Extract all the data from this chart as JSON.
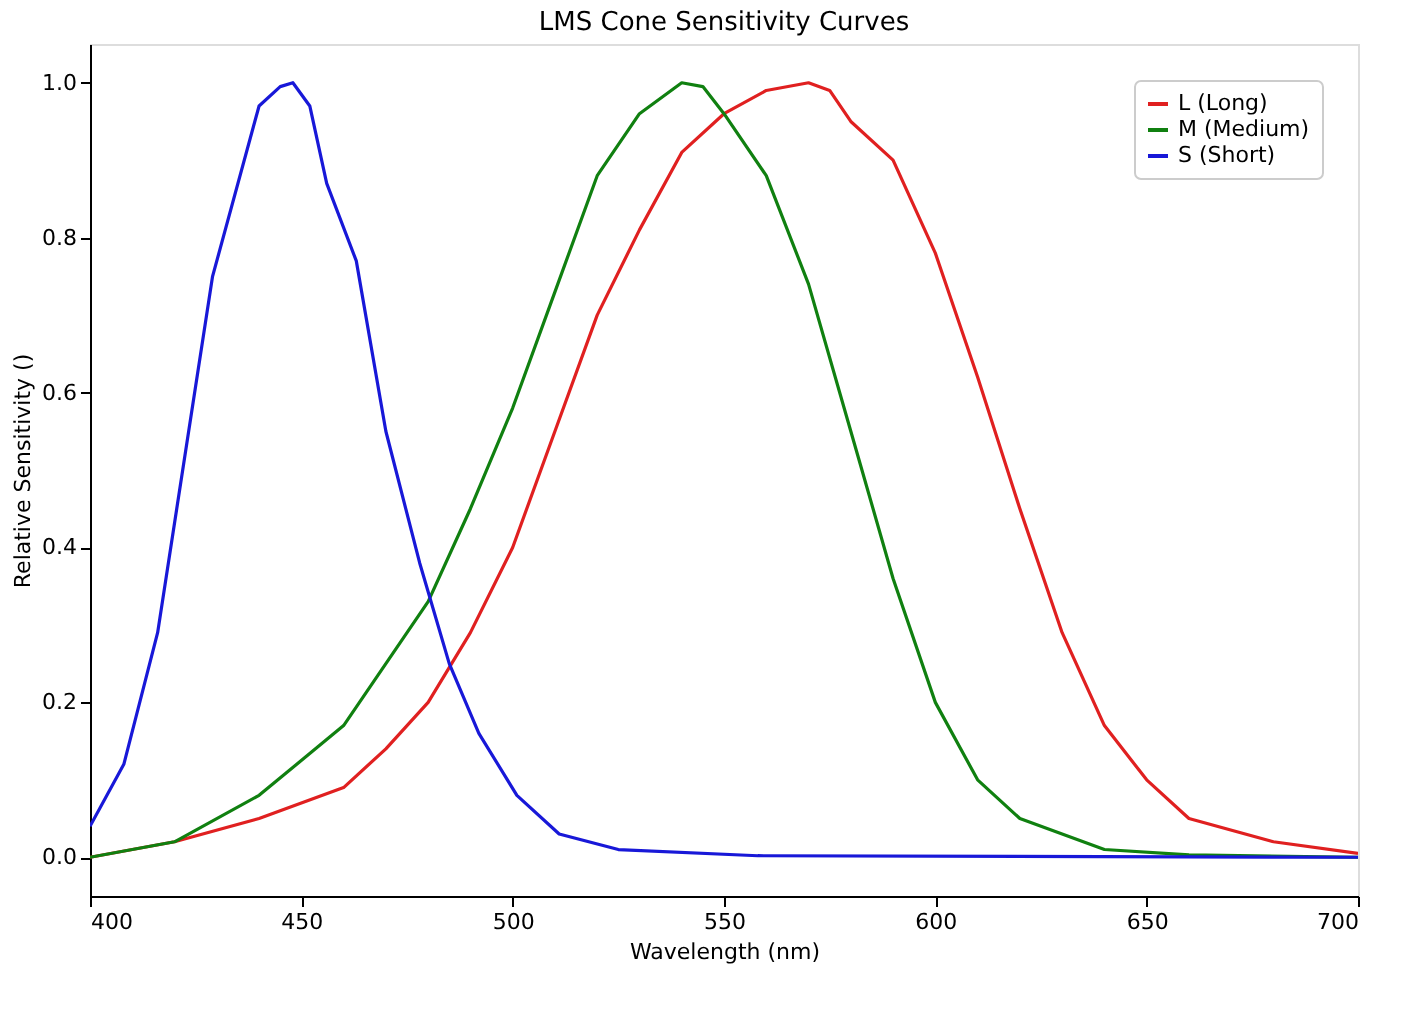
{
  "chart_data": {
    "type": "line",
    "title": "LMS Cone Sensitivity Curves",
    "xlabel": "Wavelength (nm)",
    "ylabel": "Relative Sensitivity ()",
    "xlim": [
      400,
      700
    ],
    "ylim": [
      -0.05,
      1.05
    ],
    "xticks": [
      400,
      450,
      500,
      550,
      600,
      650,
      700
    ],
    "yticks": [
      {
        "value": 0,
        "label": "0.0"
      },
      {
        "value": 0.2,
        "label": "0.2"
      },
      {
        "value": 0.4,
        "label": "0.4"
      },
      {
        "value": 0.6,
        "label": "0.6"
      },
      {
        "value": 0.8,
        "label": "0.8"
      },
      {
        "value": 1,
        "label": "1.0"
      }
    ],
    "grid": false,
    "legend": "top right",
    "marker": "none",
    "line_style": "solid",
    "series": [
      {
        "name": "L (Long)",
        "color": "#e02020",
        "x": [
          400,
          420,
          440,
          460,
          470,
          480,
          490,
          500,
          510,
          520,
          530,
          540,
          550,
          560,
          570,
          575,
          580,
          590,
          600,
          610,
          620,
          630,
          640,
          650,
          660,
          680,
          700
        ],
        "values": [
          0.0,
          0.02,
          0.05,
          0.09,
          0.14,
          0.2,
          0.29,
          0.4,
          0.55,
          0.7,
          0.81,
          0.91,
          0.96,
          0.99,
          1.0,
          0.99,
          0.95,
          0.9,
          0.78,
          0.62,
          0.45,
          0.29,
          0.17,
          0.1,
          0.05,
          0.02,
          0.005
        ]
      },
      {
        "name": "M (Medium)",
        "color": "#108010",
        "x": [
          400,
          420,
          440,
          460,
          480,
          490,
          500,
          510,
          520,
          530,
          540,
          545,
          550,
          560,
          570,
          580,
          590,
          600,
          610,
          620,
          640,
          660,
          700
        ],
        "values": [
          0.0,
          0.02,
          0.08,
          0.17,
          0.33,
          0.45,
          0.58,
          0.73,
          0.88,
          0.96,
          1.0,
          0.995,
          0.96,
          0.88,
          0.74,
          0.55,
          0.36,
          0.2,
          0.1,
          0.05,
          0.01,
          0.003,
          0.0
        ]
      },
      {
        "name": "S (Short)",
        "color": "#1818d8",
        "x": [
          400,
          408,
          416,
          429,
          440,
          445,
          448,
          452,
          456,
          463,
          470,
          478,
          485,
          492,
          501,
          511,
          525,
          558,
          700
        ],
        "values": [
          0.04,
          0.12,
          0.29,
          0.75,
          0.97,
          0.995,
          1.0,
          0.97,
          0.87,
          0.77,
          0.55,
          0.38,
          0.25,
          0.16,
          0.08,
          0.03,
          0.01,
          0.002,
          0.0
        ]
      }
    ]
  }
}
